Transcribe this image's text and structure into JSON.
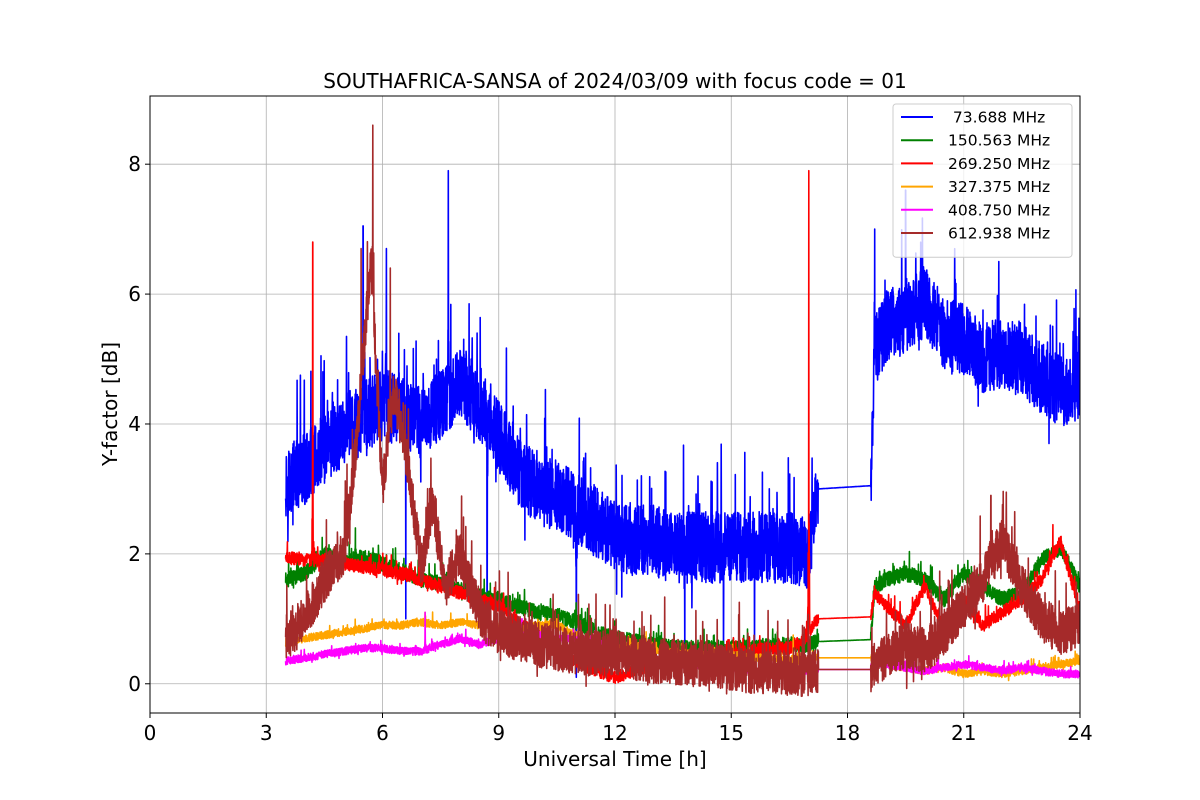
{
  "chart_data": {
    "type": "line",
    "title": "SOUTHAFRICA-SANSA of 2024/03/09 with focus code = 01",
    "xlabel": "Universal Time [h]",
    "ylabel": "Y-factor [dB]",
    "xlim": [
      0,
      24
    ],
    "ylim": [
      -0.45,
      9.05
    ],
    "xticks": [
      0,
      3,
      6,
      9,
      12,
      15,
      18,
      21,
      24
    ],
    "xtick_labels": [
      "0",
      "3",
      "6",
      "9",
      "12",
      "15",
      "18",
      "21",
      "24"
    ],
    "yticks": [
      0,
      2,
      4,
      6,
      8
    ],
    "ytick_labels": [
      "0",
      "2",
      "4",
      "6",
      "8"
    ],
    "grid": true,
    "legend_position": "top-right",
    "series": [
      {
        "name": " 73.688 MHz",
        "color": "#0000ff",
        "x": [
          3.5,
          4.0,
          4.5,
          5.0,
          5.5,
          6.0,
          6.5,
          7.0,
          7.5,
          8.0,
          8.5,
          9.0,
          9.5,
          10.0,
          10.5,
          11.0,
          11.5,
          12.0,
          12.5,
          13.0,
          13.5,
          14.0,
          14.5,
          15.0,
          15.5,
          16.0,
          16.5,
          17.0,
          17.25,
          18.6,
          18.7,
          19.0,
          19.5,
          20.0,
          20.5,
          21.0,
          21.5,
          22.0,
          22.5,
          23.0,
          23.5,
          24.0
        ],
        "y": [
          3.1,
          3.3,
          3.6,
          3.9,
          4.1,
          4.3,
          4.2,
          4.0,
          4.3,
          4.6,
          4.3,
          3.8,
          3.3,
          3.0,
          2.9,
          2.7,
          2.5,
          2.3,
          2.2,
          2.2,
          2.1,
          2.1,
          2.1,
          2.1,
          2.1,
          2.1,
          2.1,
          2.0,
          3.0,
          3.05,
          5.1,
          5.5,
          5.6,
          5.9,
          5.4,
          5.3,
          5.0,
          5.1,
          5.0,
          4.7,
          4.5,
          4.6
        ],
        "noise": 0.55,
        "spikes": [
          [
            7.7,
            7.9
          ],
          [
            5.5,
            7.05
          ],
          [
            6.1,
            6.7
          ],
          [
            19.5,
            7.6
          ],
          [
            11.0,
            0.1
          ],
          [
            13.8,
            0.3
          ],
          [
            14.8,
            0.3
          ],
          [
            8.7,
            1.2
          ],
          [
            6.6,
            1.0
          ],
          [
            15.6,
            0.4
          ],
          [
            23.2,
            3.7
          ],
          [
            18.7,
            7.0
          ]
        ]
      },
      {
        "name": "150.563 MHz",
        "color": "#008000",
        "x": [
          3.5,
          4.0,
          4.5,
          5.0,
          5.5,
          6.0,
          6.5,
          7.0,
          7.5,
          8.0,
          8.5,
          9.0,
          9.5,
          10.0,
          10.5,
          11.0,
          11.5,
          12.0,
          12.5,
          13.0,
          13.5,
          14.0,
          14.5,
          15.0,
          15.5,
          16.0,
          16.5,
          17.0,
          17.25,
          18.6,
          18.7,
          19.0,
          19.5,
          20.0,
          20.5,
          21.0,
          21.5,
          22.0,
          22.5,
          23.0,
          23.5,
          24.0
        ],
        "y": [
          1.6,
          1.7,
          2.0,
          1.9,
          1.95,
          1.85,
          1.75,
          1.6,
          1.55,
          1.45,
          1.35,
          1.3,
          1.2,
          1.1,
          1.05,
          0.95,
          0.8,
          0.7,
          0.65,
          0.6,
          0.55,
          0.55,
          0.55,
          0.55,
          0.55,
          0.6,
          0.6,
          0.6,
          0.65,
          0.68,
          1.5,
          1.6,
          1.7,
          1.6,
          1.3,
          1.7,
          1.5,
          1.3,
          1.4,
          1.9,
          2.1,
          1.5
        ],
        "noise": 0.12,
        "spikes": [
          [
            5.3,
            2.4
          ],
          [
            9.9,
            1.2
          ]
        ]
      },
      {
        "name": "269.250 MHz",
        "color": "#ff0000",
        "x": [
          3.5,
          4.0,
          4.2,
          4.5,
          5.0,
          5.5,
          6.0,
          6.5,
          7.0,
          7.5,
          8.0,
          8.5,
          9.0,
          9.5,
          10.0,
          10.5,
          11.0,
          11.5,
          12.0,
          12.5,
          13.0,
          13.5,
          14.0,
          14.5,
          15.0,
          15.5,
          16.0,
          16.5,
          16.9,
          17.25,
          18.6,
          18.7,
          19.0,
          19.5,
          20.0,
          20.5,
          21.0,
          21.5,
          22.0,
          22.5,
          23.0,
          23.5,
          24.0
        ],
        "y": [
          1.95,
          1.9,
          1.9,
          1.9,
          1.85,
          1.8,
          1.75,
          1.7,
          1.6,
          1.5,
          1.4,
          1.3,
          1.2,
          0.95,
          0.75,
          0.55,
          0.35,
          0.2,
          0.1,
          0.2,
          0.3,
          0.35,
          0.35,
          0.4,
          0.45,
          0.5,
          0.55,
          0.55,
          0.7,
          1.0,
          1.03,
          1.4,
          1.2,
          0.9,
          1.5,
          0.8,
          1.3,
          0.9,
          1.1,
          1.3,
          1.6,
          2.2,
          1.1
        ],
        "noise": 0.1,
        "spikes": [
          [
            4.2,
            6.8
          ],
          [
            17.0,
            7.9
          ],
          [
            23.3,
            2.45
          ]
        ]
      },
      {
        "name": "327.375 MHz",
        "color": "#ffa500",
        "x": [
          3.5,
          4.0,
          4.5,
          5.0,
          5.5,
          6.0,
          6.5,
          7.0,
          7.5,
          8.0,
          8.5,
          9.0,
          9.5,
          10.0,
          10.5,
          11.0,
          11.5,
          12.0,
          12.5,
          13.0,
          13.5,
          14.0,
          14.5,
          15.0,
          15.5,
          16.0,
          16.5,
          17.0,
          17.25,
          18.6,
          18.7,
          19.0,
          19.5,
          20.0,
          20.5,
          21.0,
          21.5,
          22.0,
          22.5,
          23.0,
          23.5,
          24.0
        ],
        "y": [
          0.6,
          0.7,
          0.75,
          0.8,
          0.85,
          0.9,
          0.9,
          0.95,
          0.9,
          0.95,
          0.9,
          0.85,
          0.85,
          0.9,
          0.9,
          0.75,
          0.6,
          0.55,
          0.6,
          0.5,
          0.5,
          0.45,
          0.45,
          0.45,
          0.4,
          0.4,
          0.35,
          0.35,
          0.4,
          0.4,
          0.35,
          0.3,
          0.25,
          0.2,
          0.25,
          0.15,
          0.2,
          0.15,
          0.2,
          0.25,
          0.3,
          0.35
        ],
        "noise": 0.06,
        "spikes": [
          [
            7.1,
            1.1
          ],
          [
            12.8,
            0.8
          ],
          [
            16.6,
            0.75
          ]
        ]
      },
      {
        "name": "408.750 MHz",
        "color": "#ff00ff",
        "x": [
          3.5,
          4.0,
          4.5,
          5.0,
          5.5,
          6.0,
          6.5,
          7.0,
          7.5,
          8.0,
          8.5,
          9.0,
          9.5,
          10.0,
          10.5,
          11.0,
          11.5,
          12.0,
          12.5,
          13.0,
          13.5,
          14.0,
          14.5,
          15.0,
          15.5,
          16.0,
          16.5,
          17.0,
          17.25,
          18.6,
          18.7,
          19.0,
          19.5,
          20.0,
          20.5,
          21.0,
          21.5,
          22.0,
          22.5,
          23.0,
          23.5,
          24.0
        ],
        "y": [
          0.35,
          0.4,
          0.45,
          0.5,
          0.55,
          0.55,
          0.5,
          0.5,
          0.6,
          0.7,
          0.6,
          0.7,
          0.75,
          0.75,
          0.7,
          0.7,
          0.65,
          0.5,
          0.45,
          0.35,
          0.3,
          0.3,
          0.25,
          0.25,
          0.2,
          0.2,
          0.2,
          0.2,
          0.22,
          0.22,
          0.3,
          0.3,
          0.25,
          0.2,
          0.25,
          0.3,
          0.25,
          0.2,
          0.25,
          0.2,
          0.15,
          0.15
        ],
        "noise": 0.06,
        "spikes": [
          [
            7.1,
            1.1
          ],
          [
            9.6,
            1.0
          ]
        ]
      },
      {
        "name": "612.938 MHz",
        "color": "#a52a2a",
        "x": [
          3.5,
          4.0,
          4.5,
          5.0,
          5.3,
          5.7,
          6.0,
          6.3,
          6.6,
          7.0,
          7.3,
          7.6,
          8.0,
          8.3,
          8.6,
          9.0,
          9.5,
          10.0,
          10.5,
          11.0,
          11.5,
          12.0,
          12.5,
          13.0,
          13.5,
          14.0,
          14.5,
          15.0,
          15.5,
          16.0,
          16.5,
          17.0,
          17.25,
          18.6,
          18.7,
          19.0,
          19.5,
          20.0,
          20.5,
          21.0,
          21.5,
          22.0,
          22.5,
          23.0,
          23.5,
          24.0
        ],
        "y": [
          0.7,
          1.0,
          1.6,
          2.0,
          3.5,
          6.5,
          3.0,
          4.5,
          3.6,
          1.8,
          2.8,
          1.5,
          2.0,
          1.4,
          1.0,
          0.8,
          0.7,
          0.6,
          0.55,
          0.5,
          0.45,
          0.5,
          0.4,
          0.35,
          0.35,
          0.3,
          0.3,
          0.25,
          0.2,
          0.2,
          0.15,
          0.15,
          0.22,
          0.22,
          0.3,
          0.4,
          0.6,
          0.5,
          0.8,
          1.2,
          1.6,
          2.2,
          1.5,
          1.0,
          0.8,
          0.9
        ],
        "noise": 0.35,
        "spikes": [
          [
            5.75,
            8.6
          ],
          [
            6.2,
            6.4
          ],
          [
            5.45,
            6.7
          ],
          [
            21.7,
            2.9
          ],
          [
            22.1,
            2.95
          ],
          [
            8.3,
            2.2
          ]
        ]
      }
    ]
  }
}
